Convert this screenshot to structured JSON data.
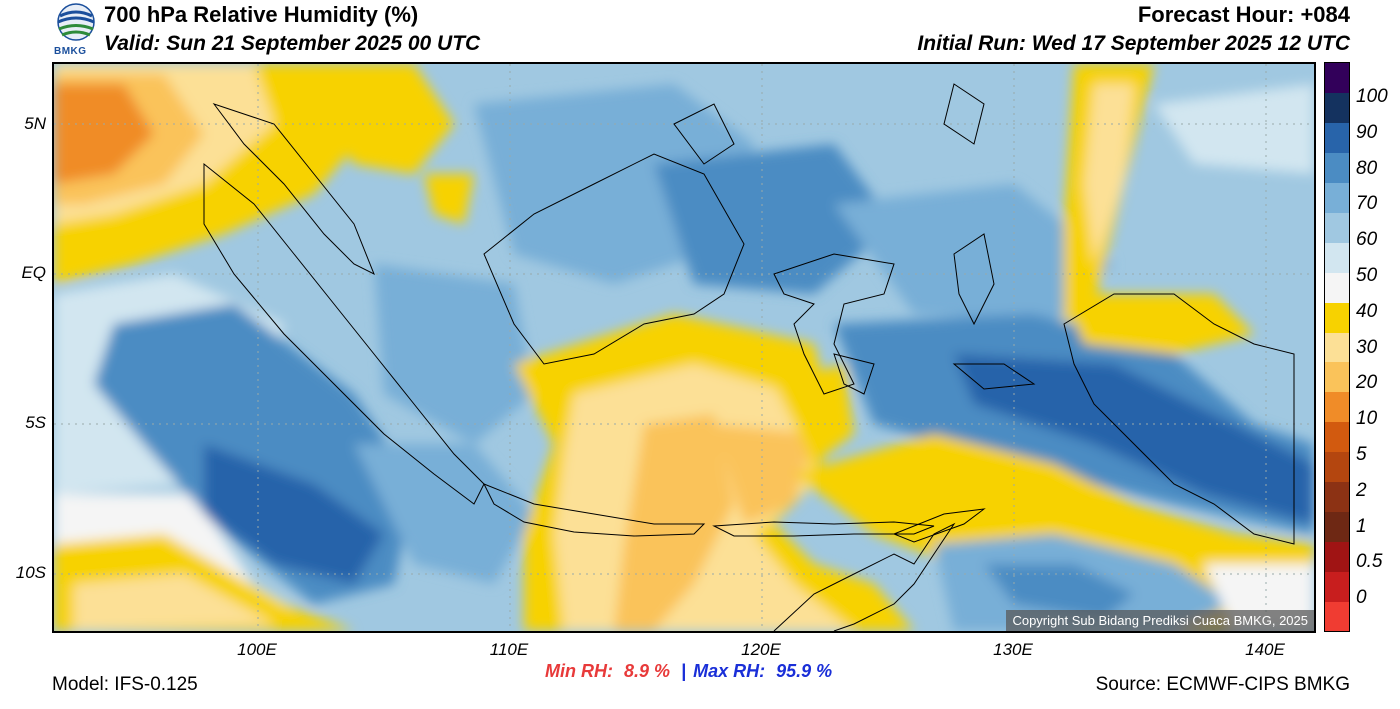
{
  "header": {
    "title": "700 hPa Relative Humidity (%)",
    "valid": "Valid: Sun 21 September 2025 00 UTC",
    "forecast_hour": "Forecast Hour: +084",
    "initial_run": "Initial Run: Wed 17 September 2025 12 UTC",
    "logo_text": "BMKG"
  },
  "map": {
    "lat_labels": [
      "5N",
      "EQ",
      "5S",
      "10S"
    ],
    "lon_labels": [
      "100E",
      "110E",
      "120E",
      "130E",
      "140E"
    ],
    "copyright": "Copyright Sub Bidang Prediksi Cuaca BMKG, 2025"
  },
  "colorbar": {
    "labels": [
      "100",
      "90",
      "80",
      "70",
      "60",
      "50",
      "40",
      "30",
      "20",
      "10",
      "5",
      "2",
      "1",
      "0.5",
      "0"
    ],
    "colors": [
      "#f03c32",
      "#c81e1e",
      "#a01414",
      "#6e2814",
      "#8c3214",
      "#b4460f",
      "#d25a0f",
      "#f08c28",
      "#fac35a",
      "#fce096",
      "#f7d200",
      "#f5f5f5",
      "#d2e6f0",
      "#a0c8e1",
      "#78afd7",
      "#4b8cc3",
      "#2864aa",
      "#14325f",
      "#32005a"
    ]
  },
  "stats": {
    "min_label": "Min RH:",
    "min_value": "8.9 %",
    "separator": "|",
    "max_label": "Max RH:",
    "max_value": "95.9 %"
  },
  "footer": {
    "model": "Model: IFS-0.125",
    "source": "Source: ECMWF-CIPS BMKG"
  }
}
